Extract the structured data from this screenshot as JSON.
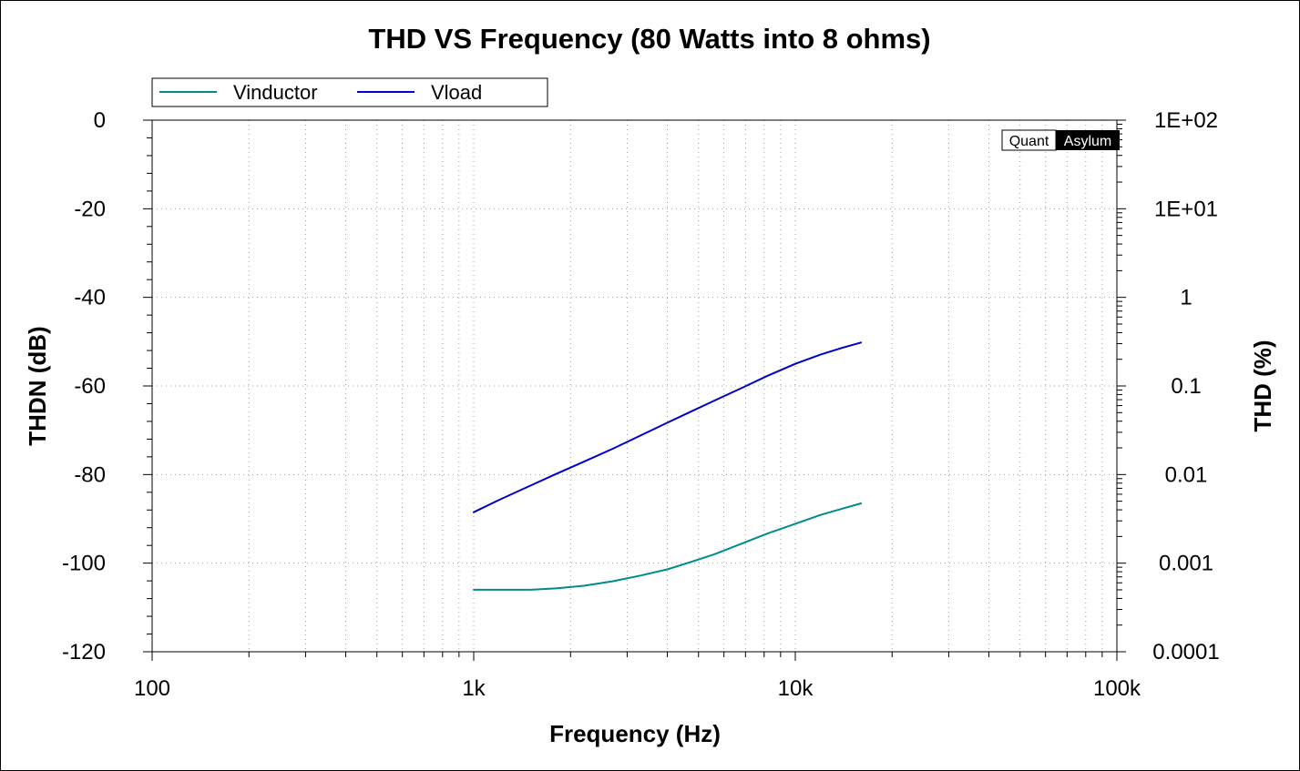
{
  "chart_data": {
    "type": "line",
    "title": "THD VS Frequency (80 Watts into 8 ohms)",
    "xlabel": "Frequency (Hz)",
    "ylabel": "THDN (dB)",
    "y2label": "THD (%)",
    "x_scale": "log",
    "xlim": [
      100,
      100000
    ],
    "ylim": [
      -120,
      0
    ],
    "x_ticks": [
      100,
      1000,
      10000,
      100000
    ],
    "x_tick_labels": [
      "100",
      "1k",
      "10k",
      "100k"
    ],
    "y_ticks": [
      0,
      -20,
      -40,
      -60,
      -80,
      -100,
      -120
    ],
    "y_tick_labels": [
      "0",
      "-20",
      "-40",
      "-60",
      "-80",
      "-100",
      "-120"
    ],
    "y2_tick_labels": [
      "1E+02",
      "1E+01",
      "1",
      "0.1",
      "0.01",
      "0.001",
      "0.0001"
    ],
    "grid": true,
    "legend_position": "top-left",
    "series": [
      {
        "name": "Vinductor",
        "color": "#008b8b",
        "x": [
          1000,
          1200,
          1500,
          1800,
          2200,
          2700,
          3300,
          4000,
          4700,
          5600,
          6800,
          8200,
          10000,
          12000,
          14000,
          16000
        ],
        "y": [
          -106,
          -106,
          -106,
          -105.7,
          -105.1,
          -104.1,
          -102.8,
          -101.4,
          -99.8,
          -98,
          -95.6,
          -93.3,
          -91.1,
          -89.1,
          -87.7,
          -86.5
        ]
      },
      {
        "name": "Vload",
        "color": "#0000c8",
        "x": [
          1000,
          1200,
          1500,
          1800,
          2200,
          2700,
          3300,
          4000,
          4700,
          5600,
          6800,
          8200,
          10000,
          12000,
          14000,
          16000
        ],
        "y": [
          -88.5,
          -85.7,
          -82.5,
          -79.9,
          -77.1,
          -74.2,
          -71.2,
          -68.3,
          -65.9,
          -63.3,
          -60.5,
          -57.7,
          -55,
          -52.9,
          -51.4,
          -50.2
        ]
      }
    ]
  },
  "watermark": {
    "left": "Quant",
    "right": "Asylum"
  }
}
